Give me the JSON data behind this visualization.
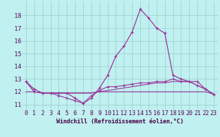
{
  "bg_color": "#c0f0f0",
  "grid_color": "#99cccc",
  "line_color": "#993399",
  "xlabel": "Windchill (Refroidissement éolien,°C)",
  "xlabel_fontsize": 6.0,
  "tick_fontsize": 6.0,
  "ylim": [
    10.6,
    19.1
  ],
  "xlim": [
    -0.5,
    23.5
  ],
  "yticks": [
    11,
    12,
    13,
    14,
    15,
    16,
    17,
    18
  ],
  "xticks": [
    0,
    1,
    2,
    3,
    4,
    5,
    6,
    7,
    8,
    9,
    10,
    11,
    12,
    13,
    14,
    15,
    16,
    17,
    18,
    19,
    20,
    21,
    22,
    23
  ],
  "curve1_x": [
    0,
    1,
    2,
    3,
    4,
    5,
    6,
    7,
    8,
    9,
    10,
    11,
    12,
    13,
    14,
    15,
    16,
    17,
    18,
    19,
    20,
    21,
    22,
    23
  ],
  "curve1_y": [
    12.8,
    12.2,
    11.9,
    11.9,
    11.9,
    11.9,
    11.5,
    11.1,
    11.5,
    12.3,
    13.3,
    14.8,
    15.6,
    16.7,
    18.5,
    17.8,
    17.0,
    16.6,
    13.3,
    13.0,
    12.8,
    12.8,
    12.2,
    11.8
  ],
  "curve2_x": [
    0,
    1,
    2,
    3,
    4,
    5,
    6,
    7,
    8,
    9,
    10,
    11,
    12,
    13,
    14,
    15,
    16,
    17,
    18,
    19,
    20,
    21,
    22,
    23
  ],
  "curve2_y": [
    12.8,
    12.0,
    11.9,
    11.9,
    11.7,
    11.5,
    11.3,
    11.1,
    11.7,
    12.1,
    12.4,
    12.4,
    12.5,
    12.6,
    12.7,
    12.7,
    12.8,
    12.8,
    13.0,
    12.8,
    12.8,
    12.5,
    12.2,
    11.8
  ],
  "curve3_x": [
    0,
    1,
    2,
    3,
    4,
    5,
    6,
    7,
    8,
    9,
    10,
    11,
    12,
    13,
    14,
    15,
    16,
    17,
    18,
    19,
    20,
    21,
    22,
    23
  ],
  "curve3_y": [
    12.8,
    12.0,
    11.9,
    11.9,
    11.9,
    11.9,
    11.9,
    11.9,
    11.9,
    12.0,
    12.1,
    12.2,
    12.3,
    12.4,
    12.5,
    12.6,
    12.7,
    12.7,
    12.8,
    12.8,
    12.8,
    12.5,
    12.2,
    11.8
  ],
  "curve4_x": [
    0,
    1,
    2,
    3,
    4,
    5,
    6,
    7,
    8,
    9,
    10,
    11,
    12,
    13,
    14,
    15,
    16,
    17,
    18,
    19,
    20,
    21,
    22,
    23
  ],
  "curve4_y": [
    12.0,
    12.0,
    11.9,
    11.9,
    11.9,
    11.9,
    11.9,
    11.9,
    11.9,
    12.0,
    12.0,
    12.0,
    12.0,
    12.0,
    12.0,
    12.0,
    12.0,
    12.0,
    12.0,
    12.0,
    12.0,
    12.0,
    12.0,
    11.8
  ]
}
